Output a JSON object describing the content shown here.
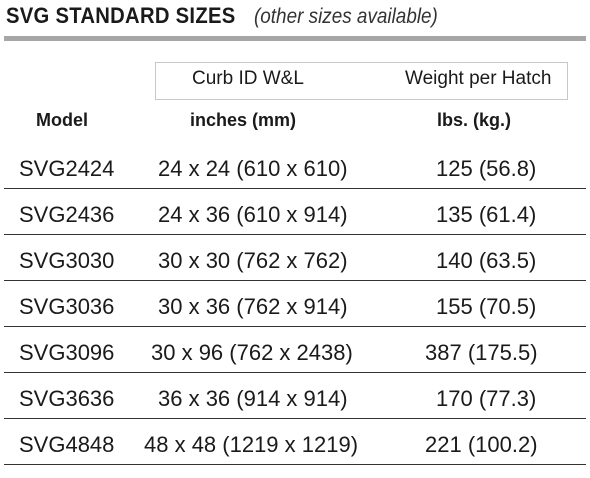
{
  "title": "SVG STANDARD SIZES",
  "subtitle": "(other sizes available)",
  "headers": {
    "curb_top": "Curb ID  W&L",
    "weight_top": "Weight per Hatch",
    "model": "Model",
    "curb_units": "inches (mm)",
    "weight_units": "lbs. (kg.)"
  },
  "rows": [
    {
      "model": "SVG2424",
      "curb": "24 x 24 (610 x 610)",
      "weight": "125 (56.8)"
    },
    {
      "model": "SVG2436",
      "curb": "24 x 36 (610 x 914)",
      "weight": "135 (61.4)"
    },
    {
      "model": "SVG3030",
      "curb": "30 x 30 (762 x 762)",
      "weight": "140 (63.5)"
    },
    {
      "model": "SVG3036",
      "curb": "30 x 36 (762 x 914)",
      "weight": "155 (70.5)"
    },
    {
      "model": "SVG3096",
      "curb": "30 x 96 (762 x 2438)",
      "weight": "387 (175.5)"
    },
    {
      "model": "SVG3636",
      "curb": "36 x 36 (914 x 914)",
      "weight": "170 (77.3)"
    },
    {
      "model": "SVG4848",
      "curb": "48 x 48 (1219 x 1219)",
      "weight": "221 (100.2)"
    }
  ]
}
